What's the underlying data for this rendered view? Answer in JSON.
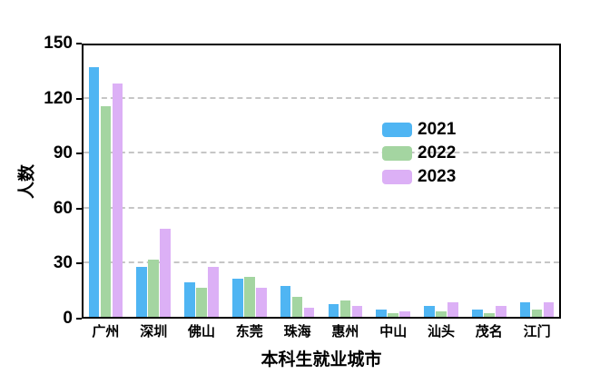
{
  "chart_data": {
    "type": "bar",
    "title": "",
    "xlabel": "本科生就业城市",
    "ylabel": "人数",
    "categories": [
      "广州",
      "深圳",
      "佛山",
      "东莞",
      "珠海",
      "惠州",
      "中山",
      "汕头",
      "茂名",
      "江门"
    ],
    "series": [
      {
        "name": "2021",
        "color": "#4FB5F3",
        "values": [
          136,
          27,
          19,
          21,
          17,
          7,
          4,
          6,
          4,
          8
        ]
      },
      {
        "name": "2022",
        "color": "#A4D5A1",
        "values": [
          115,
          31,
          16,
          22,
          11,
          9,
          2,
          3,
          2,
          4
        ]
      },
      {
        "name": "2023",
        "color": "#DCB0F6",
        "values": [
          127,
          48,
          27,
          16,
          5,
          6,
          3,
          8,
          6,
          8
        ]
      }
    ],
    "ylim": [
      0,
      150
    ],
    "ytick_step": 30,
    "yticks": [
      0,
      30,
      60,
      90,
      120,
      150
    ],
    "grid": "horizontal-dashed",
    "gridline_color": "#c6c6c6",
    "axis_color": "#000000",
    "background_color": "#ffffff",
    "legend_position": "inside-upper-right"
  }
}
